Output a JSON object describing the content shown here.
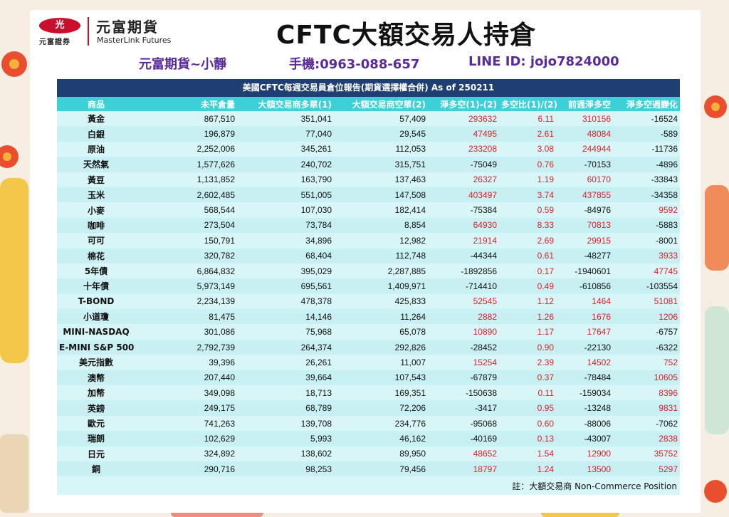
{
  "logo": {
    "mark": "光",
    "sub": "元富證券",
    "name": "元富期貨",
    "en": "MasterLink Futures"
  },
  "title": "CFTC大額交易人持倉",
  "contact": {
    "name": "元富期貨~小靜",
    "phone": "手機:0963-088-657",
    "line": "LINE ID: jojo7824000"
  },
  "table": {
    "caption": "美國CFTC每週交易員倉位報告(期貨選擇權合併) As of  250211",
    "headers": [
      "商品",
      "未平倉量",
      "大額交易商多單(1)",
      "大額交易商空單(2)",
      "淨多空(1)-(2)",
      "多空比(1)/(2)",
      "前週淨多空",
      "淨多空週變化"
    ],
    "rows": [
      [
        "黃金",
        "867,510",
        "351,041",
        "57,409",
        "293632",
        "6.11",
        "310156",
        "-16524"
      ],
      [
        "白銀",
        "196,879",
        "77,040",
        "29,545",
        "47495",
        "2.61",
        "48084",
        "-589"
      ],
      [
        "原油",
        "2,252,006",
        "345,261",
        "112,053",
        "233208",
        "3.08",
        "244944",
        "-11736"
      ],
      [
        "天然氣",
        "1,577,626",
        "240,702",
        "315,751",
        "-75049",
        "0.76",
        "-70153",
        "-4896"
      ],
      [
        "黃豆",
        "1,131,852",
        "163,790",
        "137,463",
        "26327",
        "1.19",
        "60170",
        "-33843"
      ],
      [
        "玉米",
        "2,602,485",
        "551,005",
        "147,508",
        "403497",
        "3.74",
        "437855",
        "-34358"
      ],
      [
        "小麥",
        "568,544",
        "107,030",
        "182,414",
        "-75384",
        "0.59",
        "-84976",
        "9592"
      ],
      [
        "咖啡",
        "273,504",
        "73,784",
        "8,854",
        "64930",
        "8.33",
        "70813",
        "-5883"
      ],
      [
        "可可",
        "150,791",
        "34,896",
        "12,982",
        "21914",
        "2.69",
        "29915",
        "-8001"
      ],
      [
        "棉花",
        "320,782",
        "68,404",
        "112,748",
        "-44344",
        "0.61",
        "-48277",
        "3933"
      ],
      [
        "5年債",
        "6,864,832",
        "395,029",
        "2,287,885",
        "-1892856",
        "0.17",
        "-1940601",
        "47745"
      ],
      [
        "十年債",
        "5,973,149",
        "695,561",
        "1,409,971",
        "-714410",
        "0.49",
        "-610856",
        "-103554"
      ],
      [
        "T-BOND",
        "2,234,139",
        "478,378",
        "425,833",
        "52545",
        "1.12",
        "1464",
        "51081"
      ],
      [
        "小道瓊",
        "81,475",
        "14,146",
        "11,264",
        "2882",
        "1.26",
        "1676",
        "1206"
      ],
      [
        "MINI-NASDAQ",
        "301,086",
        "75,968",
        "65,078",
        "10890",
        "1.17",
        "17647",
        "-6757"
      ],
      [
        "E-MINI S&P 500",
        "2,792,739",
        "264,374",
        "292,826",
        "-28452",
        "0.90",
        "-22130",
        "-6322"
      ],
      [
        "美元指數",
        "39,396",
        "26,261",
        "11,007",
        "15254",
        "2.39",
        "14502",
        "752"
      ],
      [
        "澳幣",
        "207,440",
        "39,664",
        "107,543",
        "-67879",
        "0.37",
        "-78484",
        "10605"
      ],
      [
        "加幣",
        "349,098",
        "18,713",
        "169,351",
        "-150638",
        "0.11",
        "-159034",
        "8396"
      ],
      [
        "英鎊",
        "249,175",
        "68,789",
        "72,206",
        "-3417",
        "0.95",
        "-13248",
        "9831"
      ],
      [
        "歐元",
        "741,263",
        "139,708",
        "234,776",
        "-95068",
        "0.60",
        "-88006",
        "-7062"
      ],
      [
        "瑞朗",
        "102,629",
        "5,993",
        "46,162",
        "-40169",
        "0.13",
        "-43007",
        "2838"
      ],
      [
        "日元",
        "324,892",
        "138,602",
        "89,950",
        "48652",
        "1.54",
        "12900",
        "35752"
      ],
      [
        "銅",
        "290,716",
        "98,253",
        "79,456",
        "18797",
        "1.24",
        "13500",
        "5297"
      ]
    ],
    "note": "註：大額交易商 Non-Commerce Position"
  },
  "colors": {
    "header_dark": "#1f3f73",
    "header_cyan": "#3dd0d8",
    "row_bg": "#d8f6f7",
    "positive": "#d9202a",
    "contact": "#5b2a9a"
  }
}
